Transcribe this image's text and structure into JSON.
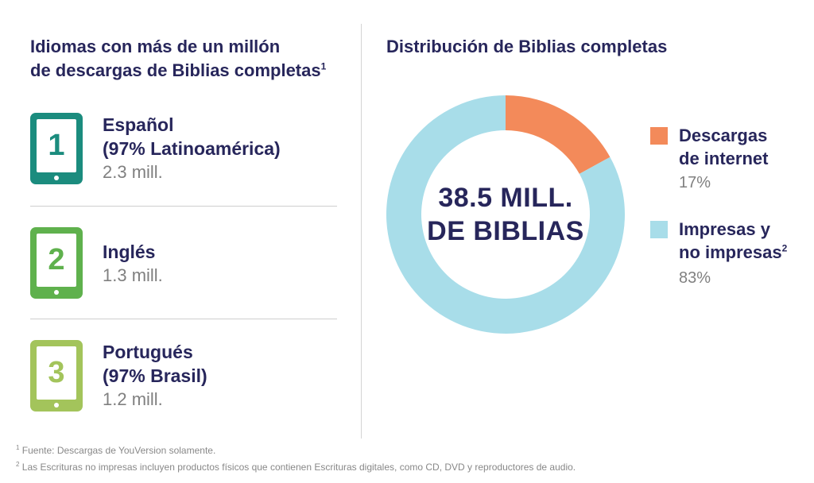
{
  "left_panel": {
    "title_line1": "Idiomas con más de un millón",
    "title_line2": "de descargas de Biblias completas",
    "title_sup": "1",
    "languages": [
      {
        "rank": "1",
        "name_line1": "Español",
        "name_line2": "(97% Latinoamérica)",
        "value": "2.3 mill.",
        "color": "#1b8c7e"
      },
      {
        "rank": "2",
        "name_line1": "Inglés",
        "name_line2": "",
        "value": "1.3 mill.",
        "color": "#5fb14d"
      },
      {
        "rank": "3",
        "name_line1": "Portugués",
        "name_line2": "(97% Brasil)",
        "value": "1.2 mill.",
        "color": "#a3c45b"
      }
    ]
  },
  "right_panel": {
    "title": "Distribución de Biblias completas",
    "center_line1": "38.5 MILL.",
    "center_line2": "DE BIBLIAS"
  },
  "chart_data": {
    "type": "pie",
    "title": "Distribución de Biblias completas",
    "total_label": "38.5 MILL. DE BIBLIAS",
    "slices": [
      {
        "label_line1": "Descargas",
        "label_line2": "de internet",
        "label_sup": "",
        "value": 17,
        "pct_label": "17%",
        "color": "#f38a5a"
      },
      {
        "label_line1": "Impresas y",
        "label_line2": "no impresas",
        "label_sup": "2",
        "value": 83,
        "pct_label": "83%",
        "color": "#a8dde9"
      }
    ],
    "legend_position": "right"
  },
  "footnotes": [
    {
      "sup": "1",
      "text": "Fuente: Descargas de YouVersion solamente."
    },
    {
      "sup": "2",
      "text": "Las Escrituras no impresas incluyen productos físicos que contienen Escrituras digitales, como CD, DVD y reproductores de audio."
    }
  ]
}
